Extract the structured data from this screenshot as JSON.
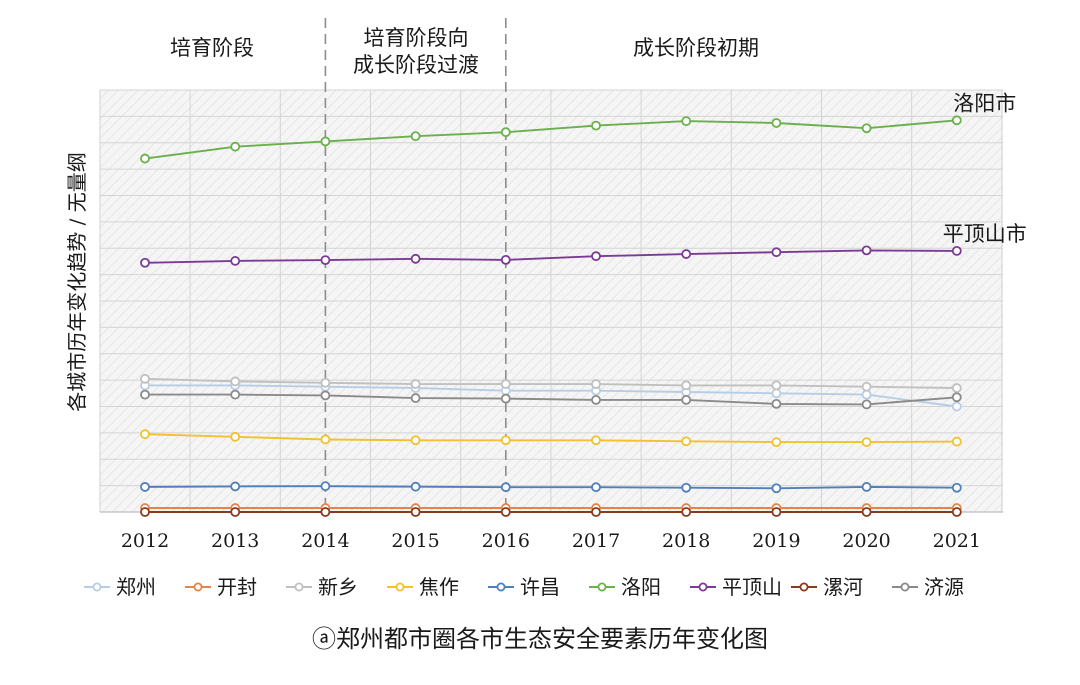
{
  "chart_data": {
    "type": "line",
    "title": "",
    "caption": "ⓐ郑州都市圈各市生态安全要素历年变化图",
    "xlabel": "",
    "ylabel": "各城市历年变化趋势 / 无量纲",
    "x": [
      "2012",
      "2013",
      "2014",
      "2015",
      "2016",
      "2017",
      "2018",
      "2019",
      "2020",
      "2021"
    ],
    "ylim": [
      0,
      16
    ],
    "grid": true,
    "legend_position": "bottom",
    "phases": [
      {
        "label_lines": [
          "培育阶段"
        ],
        "start": "2012",
        "end": "2014"
      },
      {
        "label_lines": [
          "培育阶段向",
          "成长阶段过渡"
        ],
        "start": "2014",
        "end": "2016"
      },
      {
        "label_lines": [
          "成长阶段初期"
        ],
        "start": "2016",
        "end": "2021"
      }
    ],
    "end_labels": [
      {
        "series": "洛阳",
        "text": "洛阳市"
      },
      {
        "series": "平顶山",
        "text": "平顶山市"
      }
    ],
    "series": [
      {
        "name": "郑州",
        "color": "#b7cde6",
        "values": [
          4.8,
          4.8,
          4.75,
          4.7,
          4.6,
          4.6,
          4.55,
          4.5,
          4.45,
          4.0
        ]
      },
      {
        "name": "开封",
        "color": "#e2854a",
        "values": [
          0.15,
          0.15,
          0.15,
          0.15,
          0.15,
          0.15,
          0.15,
          0.15,
          0.15,
          0.15
        ]
      },
      {
        "name": "新乡",
        "color": "#c0c0c0",
        "values": [
          5.05,
          4.95,
          4.9,
          4.85,
          4.85,
          4.85,
          4.8,
          4.8,
          4.75,
          4.7
        ]
      },
      {
        "name": "焦作",
        "color": "#f2c12e",
        "values": [
          2.95,
          2.85,
          2.75,
          2.72,
          2.72,
          2.72,
          2.68,
          2.65,
          2.65,
          2.67
        ]
      },
      {
        "name": "许昌",
        "color": "#4f7fbd",
        "values": [
          0.95,
          0.97,
          0.98,
          0.96,
          0.94,
          0.94,
          0.92,
          0.9,
          0.95,
          0.92
        ]
      },
      {
        "name": "洛阳",
        "color": "#6ab04c",
        "values": [
          13.4,
          13.85,
          14.05,
          14.25,
          14.4,
          14.65,
          14.82,
          14.75,
          14.55,
          14.85
        ]
      },
      {
        "name": "平顶山",
        "color": "#7a3a96",
        "values": [
          9.45,
          9.52,
          9.55,
          9.6,
          9.56,
          9.7,
          9.78,
          9.85,
          9.92,
          9.9
        ]
      },
      {
        "name": "漯河",
        "color": "#8a3b1e",
        "values": [
          0.0,
          0.0,
          0.0,
          0.0,
          0.0,
          0.0,
          0.0,
          0.0,
          0.0,
          0.0
        ]
      },
      {
        "name": "济源",
        "color": "#8a8a8a",
        "values": [
          4.45,
          4.45,
          4.42,
          4.32,
          4.3,
          4.25,
          4.25,
          4.1,
          4.08,
          4.35
        ]
      }
    ]
  }
}
